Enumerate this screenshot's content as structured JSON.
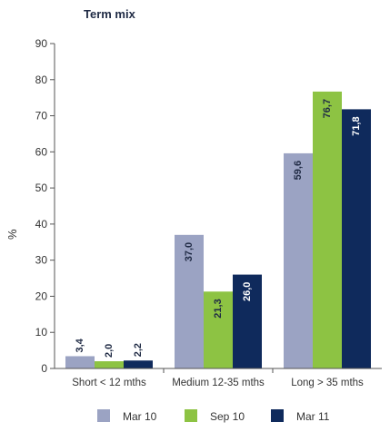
{
  "chart_data": {
    "type": "bar",
    "title": "Term mix",
    "ylabel": "%",
    "xlabel": "",
    "ylim": [
      0,
      90
    ],
    "yticks": [
      0,
      10,
      20,
      30,
      40,
      50,
      60,
      70,
      80,
      90
    ],
    "grid": false,
    "legend_position": "bottom",
    "categories": [
      "Short < 12 mths",
      "Medium 12-35 mths",
      "Long > 35 mths"
    ],
    "series": [
      {
        "name": "Mar 10",
        "color": "#9ba3c3",
        "label_color": "#1f2a44",
        "values": [
          3.4,
          37.0,
          59.6
        ],
        "labels": [
          "3,4",
          "37,0",
          "59,6"
        ]
      },
      {
        "name": "Sep 10",
        "color": "#8dc343",
        "label_color": "#1f2a44",
        "values": [
          2.0,
          21.3,
          76.7
        ],
        "labels": [
          "2,0",
          "21,3",
          "76,7"
        ]
      },
      {
        "name": "Mar 11",
        "color": "#0f2a5c",
        "label_color": "#ffffff",
        "values": [
          2.2,
          26.0,
          71.8
        ],
        "labels": [
          "2,2",
          "26,0",
          "71,8"
        ]
      }
    ]
  }
}
